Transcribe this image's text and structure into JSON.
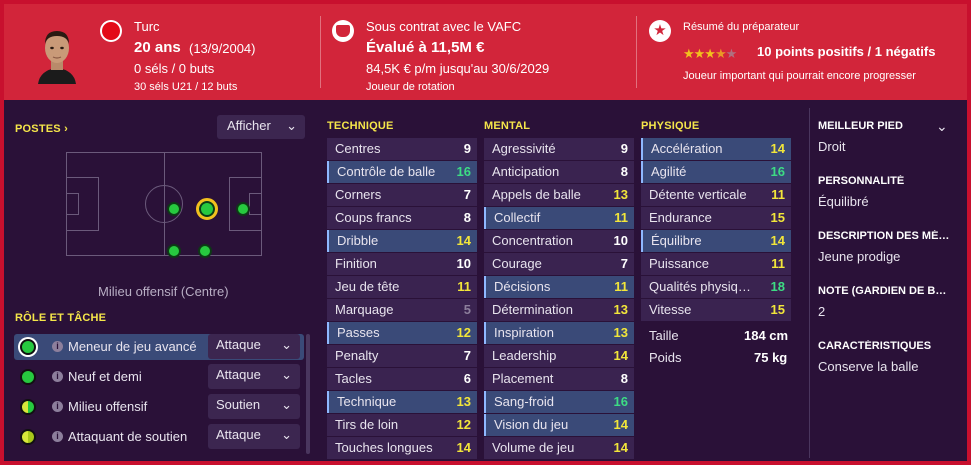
{
  "header": {
    "nationality": "Turc",
    "age": "20 ans",
    "birthdate": "(13/9/2004)",
    "caps": "0 séls / 0 buts",
    "u21": "30 séls U21 / 12 buts",
    "contract_status": "Sous contrat avec le VAFC",
    "value": "Évalué à 11,5M €",
    "wage": "84,5K € p/m jusqu'au 30/6/2029",
    "squad_status": "Joueur de rotation",
    "report_title": "Résumé du préparateur",
    "report_stars": 3.5,
    "report_summary": "10 points positifs / 1 négatifs",
    "report_text": "Joueur important qui pourrait encore progresser"
  },
  "positions": {
    "title": "POSTES",
    "button_label": "Afficher",
    "position_label": "Milieu offensif (Centre)"
  },
  "roles": {
    "title": "RÔLE ET TÂCHE",
    "items": [
      {
        "name": "Meneur de jeu avancé",
        "duty": "Attaque"
      },
      {
        "name": "Neuf et demi",
        "duty": "Attaque"
      },
      {
        "name": "Milieu offensif",
        "duty": "Soutien"
      },
      {
        "name": "Attaquant de soutien",
        "duty": "Attaque"
      }
    ]
  },
  "technique": {
    "title": "TECHNIQUE",
    "attrs": [
      {
        "name": "Centres",
        "value": "9"
      },
      {
        "name": "Contrôle de balle",
        "value": "16"
      },
      {
        "name": "Corners",
        "value": "7"
      },
      {
        "name": "Coups francs",
        "value": "8"
      },
      {
        "name": "Dribble",
        "value": "14"
      },
      {
        "name": "Finition",
        "value": "10"
      },
      {
        "name": "Jeu de tête",
        "value": "11"
      },
      {
        "name": "Marquage",
        "value": "5"
      },
      {
        "name": "Passes",
        "value": "12"
      },
      {
        "name": "Penalty",
        "value": "7"
      },
      {
        "name": "Tacles",
        "value": "6"
      },
      {
        "name": "Technique",
        "value": "13"
      },
      {
        "name": "Tirs de loin",
        "value": "12"
      },
      {
        "name": "Touches longues",
        "value": "14"
      }
    ]
  },
  "mental": {
    "title": "MENTAL",
    "attrs": [
      {
        "name": "Agressivité",
        "value": "9"
      },
      {
        "name": "Anticipation",
        "value": "8"
      },
      {
        "name": "Appels de balle",
        "value": "13"
      },
      {
        "name": "Collectif",
        "value": "11"
      },
      {
        "name": "Concentration",
        "value": "10"
      },
      {
        "name": "Courage",
        "value": "7"
      },
      {
        "name": "Décisions",
        "value": "11"
      },
      {
        "name": "Détermination",
        "value": "13"
      },
      {
        "name": "Inspiration",
        "value": "13"
      },
      {
        "name": "Leadership",
        "value": "14"
      },
      {
        "name": "Placement",
        "value": "8"
      },
      {
        "name": "Sang-froid",
        "value": "16"
      },
      {
        "name": "Vision du jeu",
        "value": "14"
      },
      {
        "name": "Volume de jeu",
        "value": "14"
      }
    ]
  },
  "physique": {
    "title": "PHYSIQUE",
    "attrs": [
      {
        "name": "Accélération",
        "value": "14"
      },
      {
        "name": "Agilité",
        "value": "16"
      },
      {
        "name": "Détente verticale",
        "value": "11"
      },
      {
        "name": "Endurance",
        "value": "15"
      },
      {
        "name": "Équilibre",
        "value": "14"
      },
      {
        "name": "Puissance",
        "value": "11"
      },
      {
        "name": "Qualités physiques naturelles",
        "value": "18"
      },
      {
        "name": "Vitesse",
        "value": "15"
      }
    ],
    "height_label": "Taille",
    "height": "184 cm",
    "weight_label": "Poids",
    "weight": "75 kg"
  },
  "info": {
    "foot_label": "MEILLEUR PIED",
    "foot": "Droit",
    "personality_label": "PERSONNALITÉ",
    "personality": "Équilibré",
    "media_label": "DESCRIPTION DES MÉDIAS",
    "media": "Jeune prodige",
    "gk_label": "NOTE (GARDIEN DE BUT)",
    "gk": "2",
    "traits_label": "CARACTÉRISTIQUES",
    "traits": "Conserve la balle"
  },
  "colors": {
    "accent": "#d2253a",
    "header_yellow": "#f5e64a",
    "val_white": "#ffffff",
    "val_grey": "#8d7f9c",
    "val_yellow": "#f2e63a",
    "val_green": "#3ddc84"
  }
}
